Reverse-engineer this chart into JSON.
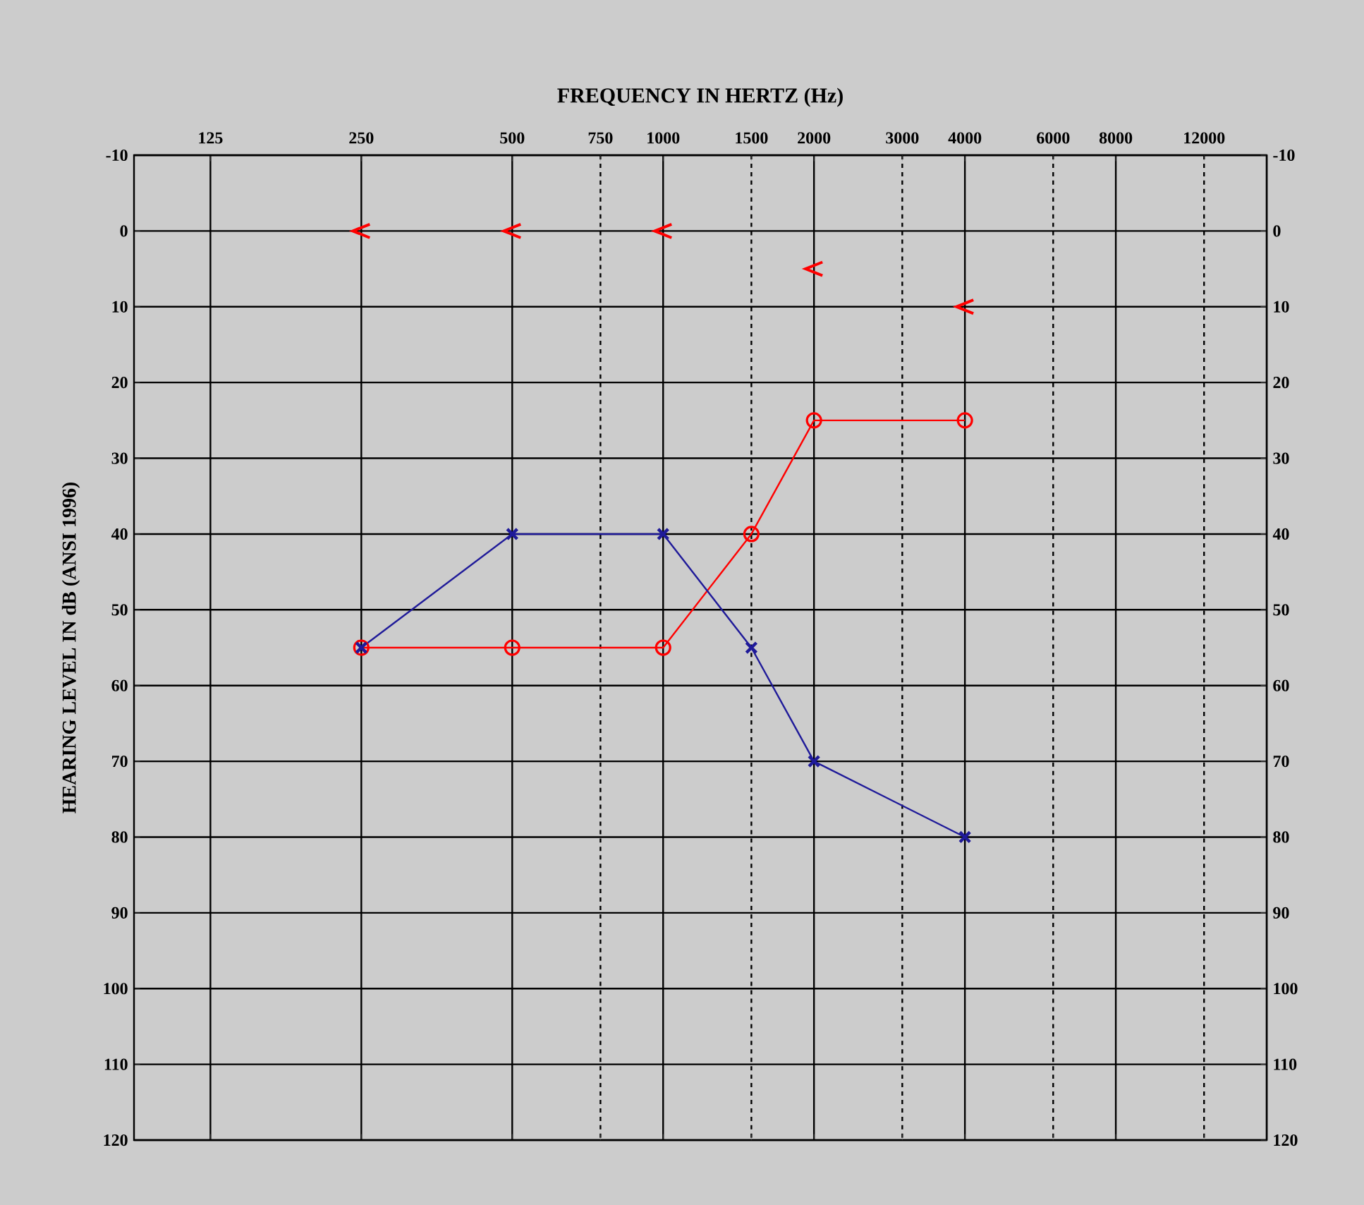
{
  "chart_data": {
    "type": "line",
    "xlabel": "FREQUENCY IN HERTZ (Hz)",
    "ylabel": "HEARING LEVEL IN dB (ANSI 1996)",
    "log": "x",
    "grid": true,
    "line_style": "solid",
    "xlim": [
      88,
      16000
    ],
    "xticks": [
      125,
      250,
      500,
      750,
      1000,
      1500,
      2000,
      3000,
      4000,
      6000,
      8000,
      12000
    ],
    "ylim": [
      120,
      -10
    ],
    "yticks": [
      -10,
      0,
      10,
      20,
      30,
      40,
      50,
      60,
      70,
      80,
      90,
      100,
      110,
      120
    ],
    "y2lim": [
      120,
      -10
    ],
    "y2ticks": [
      -10,
      0,
      10,
      20,
      30,
      40,
      50,
      60,
      70,
      80,
      90,
      100,
      110,
      120
    ],
    "series": [
      {
        "color": "#ff0000",
        "marker": "circle",
        "x": [
          250,
          500,
          1000,
          1500,
          2000,
          4000
        ],
        "values": [
          55,
          55,
          55,
          40,
          25,
          25
        ]
      },
      {
        "color": "#1f1a99",
        "marker": "cross",
        "x": [
          250,
          500,
          1000,
          1500,
          2000,
          4000
        ],
        "values": [
          55,
          40,
          40,
          55,
          70,
          80
        ]
      },
      {
        "type": "scatter",
        "color": "#ff0000",
        "x": [
          250,
          500,
          1000,
          2000,
          4000
        ],
        "values": [
          0,
          0,
          0,
          5,
          10
        ]
      }
    ]
  }
}
